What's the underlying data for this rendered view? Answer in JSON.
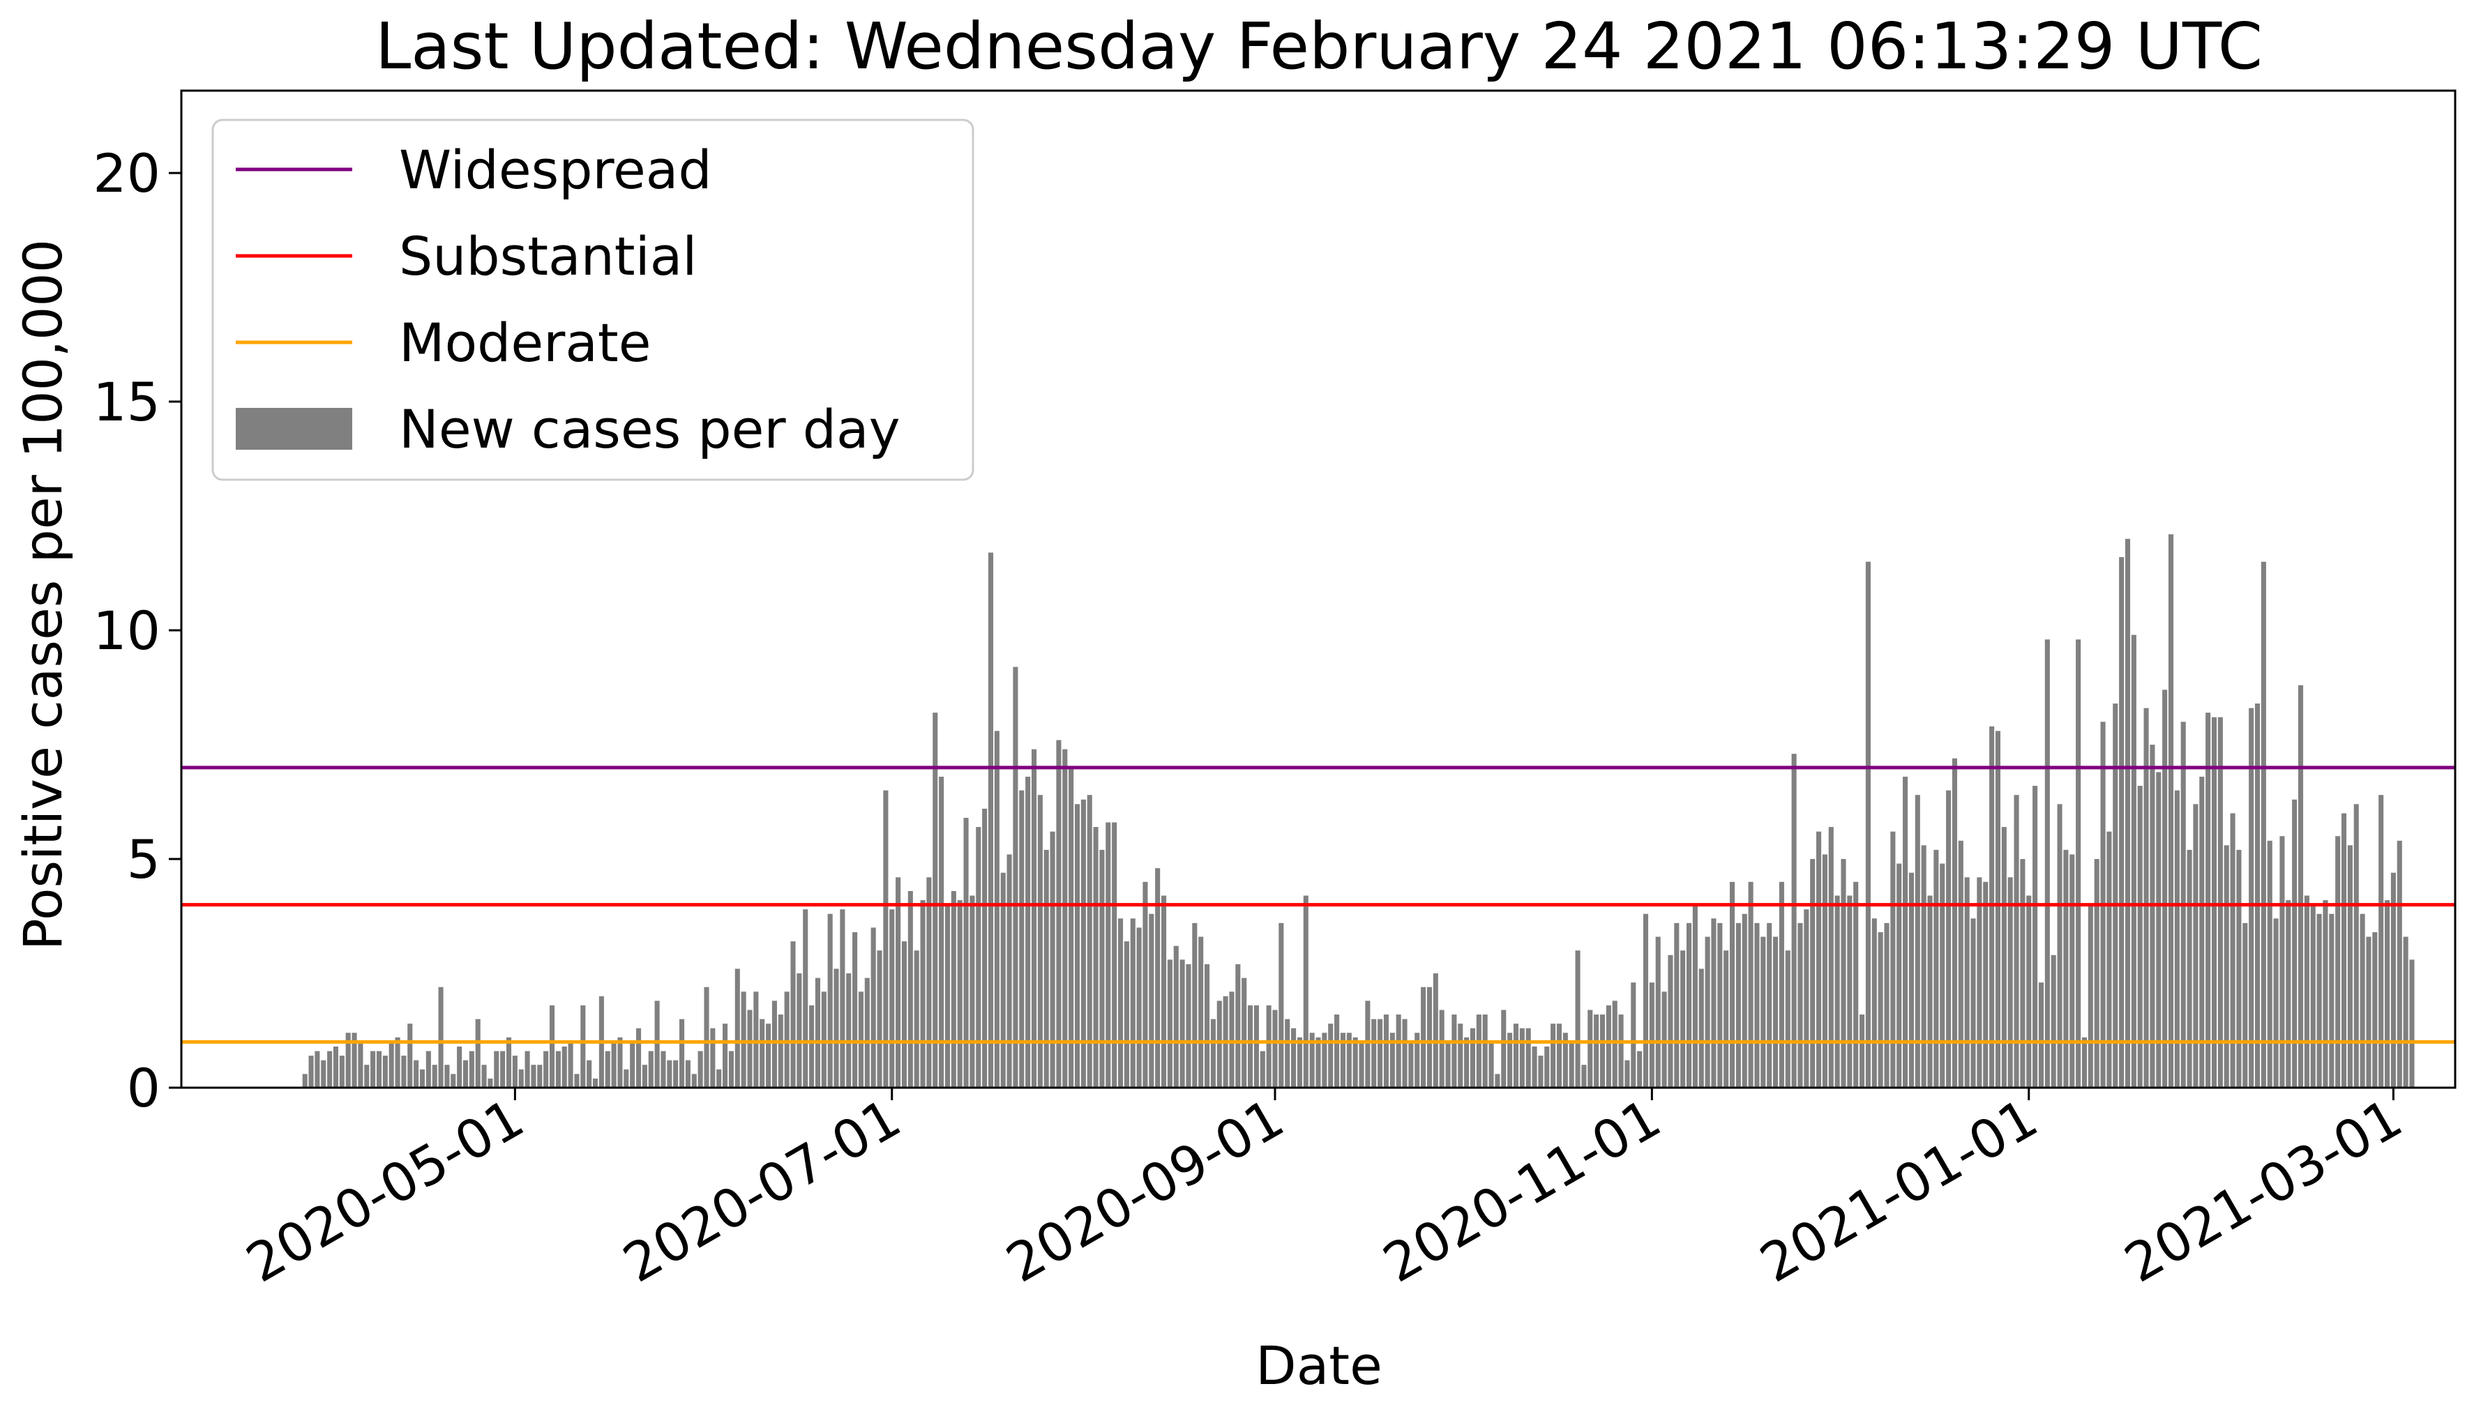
{
  "title": "Last Updated: Wednesday February 24 2021 06:13:29 UTC",
  "chart_data": {
    "type": "bar",
    "title": "Last Updated: Wednesday February 24 2021 06:13:29 UTC",
    "xlabel": "Date",
    "ylabel": "Positive cases per 100,000",
    "x_tick_labels": [
      "2020-05-01",
      "2020-07-01",
      "2020-09-01",
      "2020-11-01",
      "2021-01-01",
      "2021-03-01"
    ],
    "y_tick_labels": [
      "0",
      "5",
      "10",
      "15",
      "20"
    ],
    "ylim": [
      0,
      21.8
    ],
    "xlim": [
      "2020-03-08",
      "2021-03-11"
    ],
    "legend_position": "upper-left",
    "bar_color": "#808080",
    "start_date": "2020-03-28",
    "values": [
      0.3,
      0.7,
      0.8,
      0.6,
      0.8,
      0.9,
      0.7,
      1.2,
      1.2,
      1.0,
      0.5,
      0.8,
      0.8,
      0.7,
      1.0,
      1.1,
      0.7,
      1.4,
      0.6,
      0.4,
      0.8,
      0.5,
      2.2,
      0.5,
      0.3,
      0.9,
      0.6,
      0.8,
      1.5,
      0.5,
      0.2,
      0.8,
      0.8,
      1.1,
      0.7,
      0.4,
      0.8,
      0.5,
      0.5,
      0.8,
      1.8,
      0.8,
      0.9,
      1.0,
      0.3,
      1.8,
      0.6,
      0.2,
      2.0,
      0.8,
      1.0,
      1.1,
      0.4,
      1.0,
      1.3,
      0.5,
      0.8,
      1.9,
      0.8,
      0.6,
      0.6,
      1.5,
      0.6,
      0.3,
      0.8,
      2.2,
      1.3,
      0.4,
      1.4,
      0.8,
      2.6,
      2.1,
      1.7,
      2.1,
      1.5,
      1.4,
      1.9,
      1.6,
      2.1,
      3.2,
      2.5,
      3.9,
      1.8,
      2.4,
      2.1,
      3.8,
      2.6,
      3.9,
      2.5,
      3.4,
      2.1,
      2.4,
      3.5,
      3.0,
      6.5,
      3.9,
      4.6,
      3.2,
      4.3,
      3.0,
      4.1,
      4.6,
      8.2,
      6.8,
      4.0,
      4.3,
      4.1,
      5.9,
      4.2,
      5.7,
      6.1,
      11.7,
      7.8,
      4.7,
      5.1,
      9.2,
      6.5,
      6.8,
      7.4,
      6.4,
      5.2,
      5.6,
      7.6,
      7.4,
      7.0,
      6.2,
      6.3,
      6.4,
      5.7,
      5.2,
      5.8,
      5.8,
      3.7,
      3.2,
      3.7,
      3.5,
      4.5,
      3.8,
      4.8,
      4.2,
      2.8,
      3.1,
      2.8,
      2.7,
      3.6,
      3.3,
      2.7,
      1.5,
      1.9,
      2.0,
      2.1,
      2.7,
      2.4,
      1.8,
      1.8,
      0.8,
      1.8,
      1.7,
      3.6,
      1.5,
      1.3,
      1.1,
      4.2,
      1.2,
      1.1,
      1.2,
      1.4,
      1.6,
      1.2,
      1.2,
      1.1,
      1.0,
      1.9,
      1.5,
      1.5,
      1.6,
      1.2,
      1.6,
      1.5,
      1.0,
      1.2,
      2.2,
      2.2,
      2.5,
      1.7,
      1.0,
      1.6,
      1.4,
      1.1,
      1.3,
      1.6,
      1.6,
      1.0,
      0.3,
      1.7,
      1.2,
      1.4,
      1.3,
      1.3,
      0.9,
      0.7,
      0.9,
      1.4,
      1.4,
      1.2,
      1.0,
      3.0,
      0.5,
      1.7,
      1.6,
      1.6,
      1.8,
      1.9,
      1.6,
      0.6,
      2.3,
      0.8,
      3.8,
      2.3,
      3.3,
      2.1,
      2.9,
      3.6,
      3.0,
      3.6,
      4.0,
      2.6,
      3.3,
      3.7,
      3.6,
      3.0,
      4.5,
      3.6,
      3.8,
      4.5,
      3.6,
      3.3,
      3.6,
      3.3,
      4.5,
      3.0,
      7.3,
      3.6,
      3.9,
      5.0,
      5.6,
      5.1,
      5.7,
      4.2,
      5.0,
      4.2,
      4.5,
      1.6,
      11.5,
      3.7,
      3.4,
      3.6,
      5.6,
      4.9,
      6.8,
      4.7,
      6.4,
      5.3,
      4.2,
      5.2,
      4.9,
      6.5,
      7.2,
      5.4,
      4.6,
      3.7,
      4.6,
      4.5,
      7.9,
      7.8,
      5.7,
      4.6,
      6.4,
      5.0,
      4.2,
      6.6,
      2.3,
      9.8,
      2.9,
      6.2,
      5.2,
      5.1,
      9.8,
      1.1,
      4.0,
      5.0,
      8.0,
      5.6,
      8.4,
      11.6,
      12.0,
      9.9,
      6.6,
      8.3,
      7.5,
      6.9,
      8.7,
      12.1,
      6.5,
      8.0,
      5.2,
      6.2,
      6.8,
      8.2,
      8.1,
      8.1,
      5.3,
      6.0,
      5.2,
      3.6,
      8.3,
      8.4,
      11.5,
      5.4,
      3.7,
      5.5,
      4.1,
      6.3,
      8.8,
      4.2,
      4.0,
      3.8,
      4.1,
      3.8,
      5.5,
      6.0,
      5.3,
      6.2,
      3.8,
      3.3,
      3.4,
      6.4,
      4.1,
      4.7,
      5.4,
      3.3,
      2.8
    ],
    "series": [
      {
        "name": "Widespread",
        "type": "hline",
        "value": 7,
        "color": "#800080"
      },
      {
        "name": "Substantial",
        "type": "hline",
        "value": 4,
        "color": "#ff0000"
      },
      {
        "name": "Moderate",
        "type": "hline",
        "value": 1,
        "color": "#ffa500"
      },
      {
        "name": "New cases per day",
        "type": "bar",
        "color": "#808080"
      }
    ]
  }
}
